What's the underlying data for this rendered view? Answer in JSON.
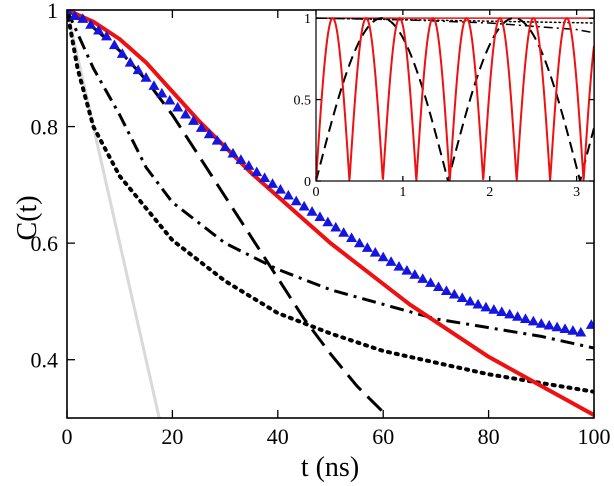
{
  "chart_data": [
    {
      "type": "line",
      "xlabel": "t (ns)",
      "ylabel": "C(t)",
      "xlim": [
        0,
        100
      ],
      "ylim": [
        0.3,
        1.0
      ],
      "xticks": [
        "0",
        "20",
        "40",
        "60",
        "80",
        "100"
      ],
      "yticks": [
        "0.4",
        "0.6",
        "0.8",
        "1"
      ],
      "grid": false,
      "series": [
        {
          "style": "solid",
          "color": "#d9d9d9",
          "width": 3,
          "x": [
            0,
            2,
            4,
            6,
            8,
            10,
            12,
            14,
            16,
            17.5
          ],
          "y": [
            1.0,
            0.92,
            0.84,
            0.76,
            0.68,
            0.6,
            0.52,
            0.44,
            0.36,
            0.3
          ]
        },
        {
          "style": "dotted",
          "color": "#000000",
          "width": 4,
          "x": [
            0,
            2,
            5,
            10,
            15,
            20,
            30,
            40,
            50,
            60,
            70,
            80,
            90,
            100
          ],
          "y": [
            1.0,
            0.9,
            0.8,
            0.715,
            0.66,
            0.605,
            0.535,
            0.48,
            0.445,
            0.415,
            0.395,
            0.375,
            0.36,
            0.345
          ]
        },
        {
          "style": "dashdot",
          "color": "#000000",
          "width": 3,
          "x": [
            0,
            2,
            5,
            10,
            15,
            20,
            30,
            40,
            50,
            60,
            70,
            80,
            90,
            100
          ],
          "y": [
            1.0,
            0.96,
            0.9,
            0.82,
            0.73,
            0.67,
            0.6,
            0.555,
            0.52,
            0.495,
            0.47,
            0.455,
            0.44,
            0.42
          ]
        },
        {
          "style": "dashed",
          "color": "#000000",
          "width": 3,
          "x": [
            0,
            5,
            10,
            15,
            20,
            25,
            30,
            35,
            40,
            45,
            50,
            55,
            60
          ],
          "y": [
            1.0,
            0.97,
            0.93,
            0.88,
            0.82,
            0.75,
            0.68,
            0.61,
            0.54,
            0.47,
            0.41,
            0.355,
            0.31
          ]
        },
        {
          "style": "solid",
          "color": "#ee1111",
          "width": 4,
          "x": [
            0,
            5,
            10,
            15,
            20,
            25,
            30,
            35,
            40,
            45,
            50,
            55,
            60,
            65,
            70,
            75,
            80,
            85,
            90,
            95,
            100
          ],
          "y": [
            1.0,
            0.98,
            0.95,
            0.91,
            0.86,
            0.81,
            0.765,
            0.72,
            0.68,
            0.64,
            0.6,
            0.565,
            0.53,
            0.495,
            0.465,
            0.435,
            0.405,
            0.38,
            0.355,
            0.33,
            0.305
          ]
        },
        {
          "style": "triangles",
          "color": "#1515e0",
          "x": [
            0,
            1.5,
            3,
            4.5,
            6,
            7.5,
            9,
            10.5,
            12,
            13.5,
            15,
            16.5,
            18,
            19.5,
            21,
            22.5,
            24,
            25.5,
            27,
            28.5,
            30,
            31.5,
            33,
            34.5,
            36,
            37.5,
            39,
            40.5,
            42,
            43.5,
            45,
            46.5,
            48,
            49.5,
            51,
            52.5,
            54,
            55.5,
            57,
            58.5,
            60,
            61.5,
            63,
            64.5,
            66,
            67.5,
            69,
            70.5,
            72,
            73.5,
            75,
            76.5,
            78,
            79.5,
            81,
            82.5,
            84,
            85.5,
            87,
            88.5,
            90,
            91.5,
            93,
            94.5,
            96,
            97.5,
            99.5
          ],
          "y": [
            1.0,
            0.99,
            0.985,
            0.975,
            0.965,
            0.955,
            0.94,
            0.925,
            0.91,
            0.897,
            0.884,
            0.87,
            0.857,
            0.845,
            0.833,
            0.821,
            0.81,
            0.798,
            0.787,
            0.776,
            0.765,
            0.754,
            0.743,
            0.733,
            0.722,
            0.712,
            0.702,
            0.692,
            0.682,
            0.672,
            0.663,
            0.654,
            0.645,
            0.636,
            0.627,
            0.618,
            0.609,
            0.6,
            0.592,
            0.584,
            0.576,
            0.568,
            0.56,
            0.553,
            0.546,
            0.539,
            0.532,
            0.525,
            0.518,
            0.512,
            0.506,
            0.5,
            0.495,
            0.49,
            0.486,
            0.482,
            0.478,
            0.474,
            0.47,
            0.466,
            0.462,
            0.459,
            0.456,
            0.453,
            0.45,
            0.447,
            0.46
          ]
        }
      ]
    },
    {
      "type": "line",
      "position": "inset-top-right",
      "xlim": [
        0,
        3.2
      ],
      "ylim": [
        0,
        1.05
      ],
      "xticks": [
        "0",
        "1",
        "2",
        "3"
      ],
      "yticks": [
        "0",
        "0.5",
        "1"
      ],
      "grid": false,
      "series": [
        {
          "style": "solid",
          "color": "#ee1111",
          "width": 1.5,
          "x": [
            0,
            3.2
          ],
          "y": [
            1.0,
            1.0
          ]
        },
        {
          "style": "dotted",
          "color": "#000000",
          "width": 1.5,
          "x": [
            0,
            3.2
          ],
          "y": [
            1.0,
            0.97
          ]
        },
        {
          "style": "dashdot",
          "color": "#000000",
          "width": 1.5,
          "x": [
            0,
            1,
            2,
            3,
            3.2
          ],
          "y": [
            1.0,
            0.99,
            0.97,
            0.93,
            0.91
          ]
        },
        {
          "style": "dashed",
          "color": "#000000",
          "width": 2,
          "func": "abs_sin",
          "period": 1.52,
          "amplitude": 1.0
        },
        {
          "style": "solid",
          "color": "#ee1111",
          "width": 2,
          "func": "abs_sin",
          "period": 0.385,
          "amplitude": 1.0
        }
      ]
    }
  ]
}
